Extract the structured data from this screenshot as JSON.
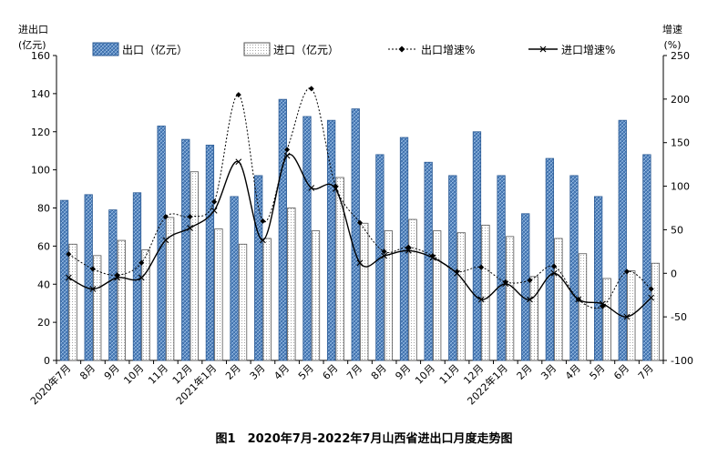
{
  "chart_data": {
    "type": "bar",
    "title": "图1　2020年7月-2022年7月山西省进出口月度走势图",
    "left_axis_label_line1": "进出口",
    "left_axis_label_line2": "(亿元)",
    "right_axis_label_line1": "增速",
    "right_axis_label_line2": "(%)",
    "ylim_left": [
      0,
      160
    ],
    "yticks_left": [
      0,
      20,
      40,
      60,
      80,
      100,
      120,
      140,
      160
    ],
    "ylim_right": [
      -100,
      250
    ],
    "yticks_right": [
      -100,
      -50,
      0,
      50,
      100,
      150,
      200,
      250
    ],
    "categories": [
      "2020年7月",
      "8月",
      "9月",
      "10月",
      "11月",
      "12月",
      "2021年1月",
      "2月",
      "3月",
      "4月",
      "5月",
      "6月",
      "7月",
      "8月",
      "9月",
      "10月",
      "11月",
      "12月",
      "2022年1月",
      "2月",
      "3月",
      "4月",
      "5月",
      "6月",
      "7月"
    ],
    "legend_position": "top",
    "grid": false,
    "colors": {
      "export_bar": "#4f81bd",
      "import_bar": "#ffffff",
      "axis": "#000000"
    },
    "series": [
      {
        "name": "出口（亿元）",
        "type": "bar",
        "axis": "left",
        "values": [
          84,
          87,
          79,
          88,
          123,
          116,
          113,
          86,
          97,
          137,
          128,
          126,
          132,
          108,
          117,
          104,
          97,
          120,
          97,
          77,
          106,
          97,
          86,
          126,
          108
        ]
      },
      {
        "name": "进口（亿元）",
        "type": "bar",
        "axis": "left",
        "values": [
          61,
          55,
          63,
          58,
          75,
          99,
          69,
          61,
          64,
          80,
          68,
          96,
          72,
          68,
          74,
          68,
          67,
          71,
          65,
          44,
          64,
          56,
          43,
          47,
          51
        ]
      },
      {
        "name": "出口增速%",
        "type": "line",
        "axis": "right",
        "values": [
          22,
          5,
          -2,
          12,
          65,
          65,
          82,
          205,
          60,
          142,
          212,
          100,
          58,
          25,
          30,
          20,
          2,
          7,
          -10,
          -8,
          8,
          -30,
          -38,
          2,
          -18
        ]
      },
      {
        "name": "进口增速%",
        "type": "line",
        "axis": "right",
        "values": [
          -5,
          -18,
          -5,
          -5,
          38,
          52,
          72,
          128,
          38,
          135,
          98,
          97,
          12,
          20,
          26,
          18,
          0,
          -30,
          -12,
          -30,
          0,
          -30,
          -35,
          -50,
          -28
        ]
      }
    ]
  }
}
